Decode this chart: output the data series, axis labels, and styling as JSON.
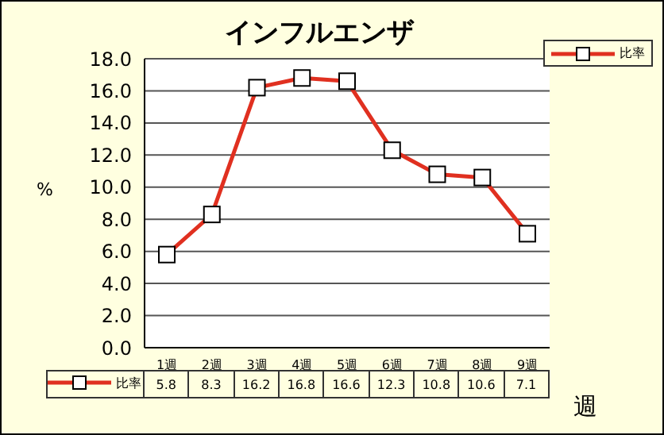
{
  "chart_data": {
    "type": "line",
    "title": "インフルエンザ",
    "xlabel": "週",
    "ylabel": "%",
    "categories": [
      "1週",
      "2週",
      "3週",
      "4週",
      "5週",
      "6週",
      "7週",
      "8週",
      "9週"
    ],
    "series": [
      {
        "name": "比率",
        "color": "#e03020",
        "values": [
          5.8,
          8.3,
          16.2,
          16.8,
          16.6,
          12.3,
          10.8,
          10.6,
          7.1
        ]
      }
    ],
    "ylim": [
      0,
      18
    ],
    "yticks": [
      {
        "value": 0,
        "label": "0.0"
      },
      {
        "value": 2,
        "label": "2.0"
      },
      {
        "value": 4,
        "label": "4.0"
      },
      {
        "value": 6,
        "label": "6.0"
      },
      {
        "value": 8,
        "label": "8.0"
      },
      {
        "value": 10,
        "label": "10.0"
      },
      {
        "value": 12,
        "label": "12.0"
      },
      {
        "value": 14,
        "label": "14.0"
      },
      {
        "value": 16,
        "label": "16.0"
      },
      {
        "value": 18,
        "label": "18.0"
      }
    ],
    "grid": "y",
    "legend": "top right",
    "marker": "square",
    "line_style": "solid",
    "data_labels": true
  }
}
